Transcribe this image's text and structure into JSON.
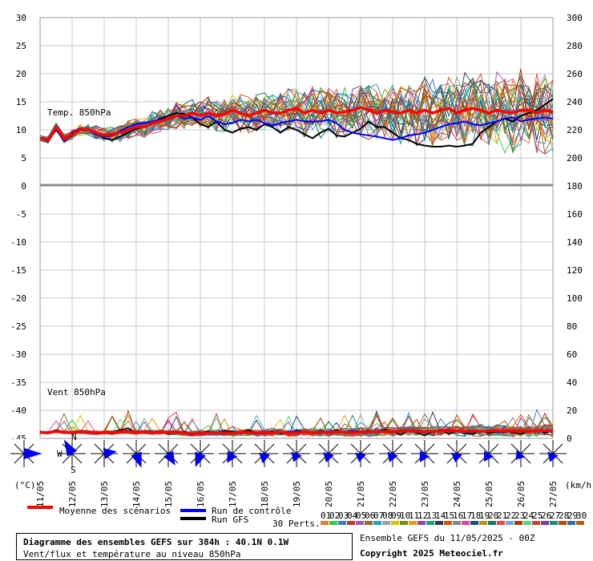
{
  "chart_data": {
    "type": "line",
    "title": "Diagramme des ensembles GEFS sur 384h : 40.1N 0.1W",
    "subtitle": "Vent/flux et température au niveau 850hPa",
    "left_axis_ticks": [
      "30",
      "25",
      "20",
      "15",
      "10",
      "5",
      "0",
      "-5",
      "-10",
      "-15",
      "-20",
      "-25",
      "-30",
      "-35",
      "-40",
      "-45"
    ],
    "right_axis_ticks": [
      "300",
      "280",
      "260",
      "240",
      "220",
      "200",
      "180",
      "160",
      "140",
      "120",
      "100",
      "80",
      "60",
      "40",
      "20",
      "0"
    ],
    "left_unit": "(°C)",
    "right_unit": "(km/h)",
    "x_ticks": [
      "11/05",
      "12/05",
      "13/05",
      "14/05",
      "15/05",
      "16/05",
      "17/05",
      "18/05",
      "19/05",
      "20/05",
      "21/05",
      "22/05",
      "23/05",
      "24/05",
      "25/05",
      "26/05",
      "27/05"
    ],
    "temperature_panel_label": "Temp. 850hPa",
    "wind_panel_label": "Vent 850hPa",
    "ylim_left": [
      -45,
      30
    ],
    "ylim_right": [
      0,
      300
    ],
    "temperature": {
      "mean": [
        8.5,
        8.2,
        10.5,
        8.4,
        9.2,
        10.0,
        10.1,
        9.5,
        9.0,
        9.2,
        9.5,
        10.0,
        10.5,
        10.5,
        11.2,
        11.5,
        12.0,
        12.5,
        12.5,
        13.0,
        12.5,
        13.0,
        12.5,
        12.8,
        13.5,
        13.0,
        12.5,
        13.0,
        13.5,
        13.0,
        13.0,
        13.5,
        13.8,
        13.0,
        13.5,
        13.0,
        13.5,
        13.0,
        13.2,
        13.5,
        14.0,
        13.5,
        13.0,
        13.5,
        13.2,
        13.0,
        13.5,
        13.0,
        13.5,
        13.0,
        13.5,
        13.8,
        13.0,
        13.5,
        13.8,
        13.5,
        13.0,
        13.5,
        13.2,
        13.0,
        13.5,
        13.5,
        13.0,
        13.5,
        13.2
      ],
      "control": [
        8.5,
        8.0,
        10.2,
        8.0,
        9.5,
        10.2,
        10.0,
        9.2,
        8.8,
        9.0,
        9.8,
        10.5,
        11.0,
        11.2,
        11.5,
        11.8,
        12.0,
        12.5,
        12.0,
        12.2,
        11.8,
        12.5,
        11.5,
        11.0,
        11.2,
        11.8,
        11.5,
        11.8,
        11.2,
        10.8,
        11.2,
        11.5,
        11.8,
        11.5,
        11.5,
        11.5,
        11.8,
        11.2,
        10.0,
        9.5,
        9.2,
        9.0,
        8.8,
        8.5,
        8.2,
        8.5,
        9.0,
        9.2,
        9.5,
        10.0,
        10.5,
        11.0,
        11.2,
        11.5,
        11.0,
        10.8,
        11.2,
        11.5,
        12.0,
        12.2,
        11.5,
        11.8,
        12.0,
        12.2,
        12.0
      ],
      "gfs": [
        8.5,
        8.0,
        10.0,
        8.2,
        9.0,
        10.2,
        10.0,
        9.5,
        8.5,
        8.2,
        8.8,
        9.5,
        10.2,
        10.5,
        11.2,
        12.0,
        12.5,
        13.0,
        12.8,
        12.2,
        11.0,
        10.5,
        11.5,
        10.0,
        9.5,
        10.2,
        10.5,
        10.0,
        11.0,
        10.5,
        9.5,
        10.5,
        10.0,
        9.2,
        8.5,
        9.5,
        10.2,
        9.0,
        8.8,
        9.5,
        10.2,
        11.5,
        10.5,
        10.5,
        9.5,
        8.5,
        8.2,
        7.5,
        7.2,
        7.0,
        7.0,
        7.2,
        7.0,
        7.2,
        7.5,
        9.5,
        10.5,
        11.5,
        12.0,
        11.5,
        12.5,
        13.0,
        13.5,
        14.5,
        15.5
      ]
    },
    "wind": {
      "mean": [
        13,
        12,
        15,
        13,
        12,
        14,
        13,
        12,
        13,
        12,
        14,
        15,
        13,
        14,
        13,
        14,
        12,
        13,
        11,
        10,
        11,
        12,
        11,
        12,
        11,
        12,
        13,
        11,
        12,
        12,
        13,
        11,
        12,
        13,
        12,
        13,
        12,
        14,
        13,
        12,
        14,
        13,
        14,
        15,
        14,
        15,
        16,
        15,
        14,
        15,
        16,
        17,
        16,
        15,
        16,
        15,
        16,
        17,
        16,
        15,
        16,
        15,
        16,
        17,
        16
      ],
      "control": [
        14,
        13,
        16,
        12,
        11,
        15,
        14,
        13,
        14,
        13,
        15,
        13,
        12,
        13,
        14,
        13,
        12,
        11,
        10,
        11,
        12,
        13,
        11,
        10,
        12,
        11,
        13,
        12,
        14,
        13,
        12,
        14,
        15,
        14,
        13,
        14,
        15,
        13,
        14,
        16,
        15,
        14,
        13,
        15,
        16,
        15,
        14,
        13,
        16,
        15,
        14,
        16,
        15,
        14,
        13,
        15,
        16,
        14,
        13,
        15,
        16,
        14,
        15,
        16,
        15
      ],
      "gfs": [
        15,
        13,
        18,
        14,
        10,
        16,
        13,
        11,
        15,
        14,
        18,
        22,
        12,
        16,
        14,
        15,
        10,
        11,
        14,
        8,
        12,
        15,
        10,
        16,
        14,
        12,
        18,
        11,
        13,
        15,
        10,
        12,
        17,
        14,
        11,
        16,
        13,
        18,
        12,
        10,
        14,
        16,
        12,
        19,
        15,
        8,
        16,
        12,
        6,
        14,
        18,
        10,
        15,
        12,
        9,
        17,
        11,
        14,
        16,
        12,
        10,
        15,
        18,
        12,
        16
      ]
    },
    "wind_directions_deg": [
      90,
      330,
      80,
      160,
      150,
      200,
      210,
      190,
      200,
      195,
      190,
      200,
      210,
      190,
      210,
      220,
      200,
      210
    ],
    "wind_direction_scale": [
      50,
      45,
      35,
      42,
      38,
      40,
      30,
      28,
      25,
      26,
      24,
      26,
      28,
      25,
      26,
      22,
      25,
      23
    ],
    "perturbation_ids": [
      "01",
      "02",
      "03",
      "04",
      "05",
      "06",
      "07",
      "08",
      "09",
      "10",
      "11",
      "12",
      "13",
      "14",
      "15",
      "16",
      "17",
      "18",
      "19",
      "20",
      "21",
      "22",
      "23",
      "24",
      "25",
      "26",
      "27",
      "28",
      "29",
      "30"
    ],
    "perturbation_colors": [
      "#e67e22",
      "#2ecc40",
      "#3c78d8",
      "#c0392b",
      "#9b59b6",
      "#8c6d31",
      "#27a0c4",
      "#a0a0a0",
      "#d4c400",
      "#6b8e23",
      "#f39c12",
      "#8e44ad",
      "#16a085",
      "#2c3e50",
      "#d35400",
      "#7f8c8d",
      "#e84393",
      "#1a5276",
      "#b7950b",
      "#117a65",
      "#e74c3c",
      "#5dade2",
      "#a04000",
      "#58d68d",
      "#cb4335",
      "#7d3c98",
      "#148f77",
      "#ba4a00",
      "#2471a3",
      "#af601a"
    ],
    "mean_color": "#ff0000",
    "control_color": "#0000ff",
    "gfs_color": "#000000",
    "compass": {
      "n": "N",
      "s": "S",
      "w": "W"
    }
  },
  "legend": {
    "mean_label": "Moyenne des scénarios",
    "control_label": "Run de contrôle",
    "gfs_label": "Run GFS",
    "perts_label": "30 Perts."
  },
  "footer": {
    "title": "Diagramme des ensembles GEFS sur 384h : 40.1N 0.1W",
    "subtitle": "Vent/flux et température au niveau 850hPa",
    "run_info": "Ensemble GEFS du 11/05/2025 - 00Z",
    "copyright": "Copyright 2025 Meteociel.fr"
  }
}
